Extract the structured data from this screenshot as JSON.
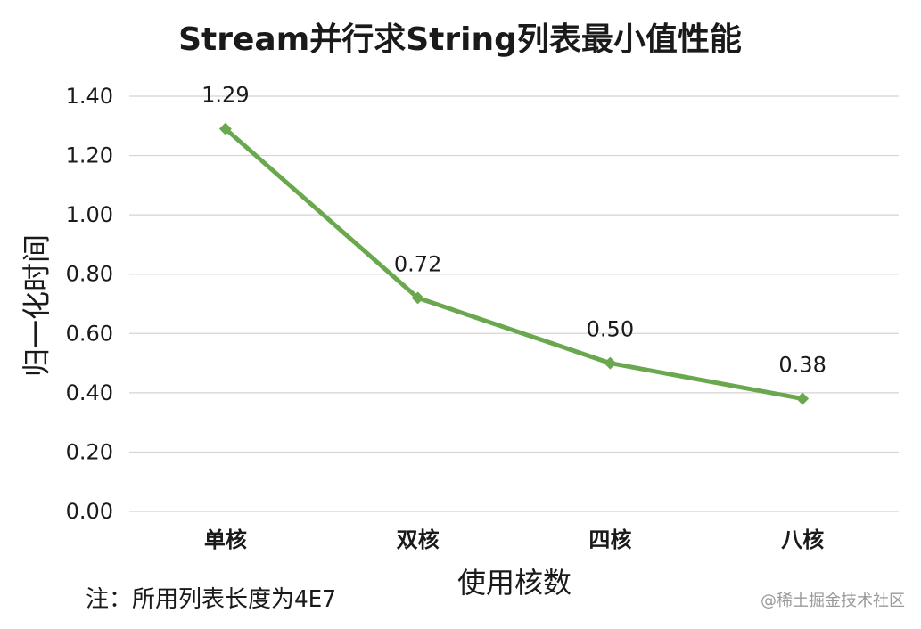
{
  "chart_data": {
    "type": "line",
    "title": "Stream并行求String列表最小值性能",
    "xlabel": "使用核数",
    "ylabel": "归一化时间",
    "categories": [
      "单核",
      "双核",
      "四核",
      "八核"
    ],
    "series": [
      {
        "values": [
          1.29,
          0.72,
          0.5,
          0.38
        ],
        "color": "#6aa84f"
      }
    ],
    "data_labels": [
      "1.29",
      "0.72",
      "0.50",
      "0.38"
    ],
    "ylim": [
      0,
      1.4
    ],
    "yticks": [
      "0.00",
      "0.20",
      "0.40",
      "0.60",
      "0.80",
      "1.00",
      "1.20",
      "1.40"
    ],
    "grid": true,
    "legend": "none"
  },
  "note": "注：所用列表长度为4E7",
  "watermark": "@稀土掘金技术社区"
}
